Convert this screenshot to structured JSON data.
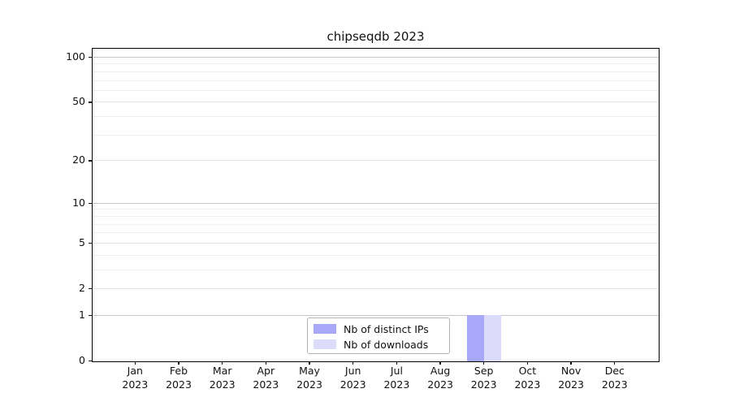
{
  "chart_data": {
    "type": "bar",
    "title": "chipseqdb 2023",
    "x_categories": [
      {
        "month": "Jan",
        "year": "2023"
      },
      {
        "month": "Feb",
        "year": "2023"
      },
      {
        "month": "Mar",
        "year": "2023"
      },
      {
        "month": "Apr",
        "year": "2023"
      },
      {
        "month": "May",
        "year": "2023"
      },
      {
        "month": "Jun",
        "year": "2023"
      },
      {
        "month": "Jul",
        "year": "2023"
      },
      {
        "month": "Aug",
        "year": "2023"
      },
      {
        "month": "Sep",
        "year": "2023"
      },
      {
        "month": "Oct",
        "year": "2023"
      },
      {
        "month": "Nov",
        "year": "2023"
      },
      {
        "month": "Dec",
        "year": "2023"
      }
    ],
    "series": [
      {
        "name": "Nb of distinct IPs",
        "color": "#a8a8f8",
        "values": [
          0,
          0,
          0,
          0,
          0,
          0,
          0,
          0,
          1,
          0,
          0,
          0
        ]
      },
      {
        "name": "Nb of downloads",
        "color": "#dcdcfa",
        "values": [
          0,
          0,
          0,
          0,
          0,
          0,
          0,
          0,
          1,
          0,
          0,
          0
        ]
      }
    ],
    "xlabel": "",
    "ylabel": "",
    "y_scale": "log1p",
    "y_major_ticks": [
      0,
      1,
      2,
      5,
      10,
      20,
      50,
      100
    ],
    "y_minor_gridlines": [
      3,
      4,
      6,
      7,
      8,
      9,
      30,
      40,
      60,
      70,
      80,
      90
    ],
    "ylim": [
      0,
      114
    ],
    "grid": "horizontal",
    "legend_position": "inside-bottom-center"
  },
  "colors": {
    "major_power_gridline": "#c6c6c6",
    "labeled_gridline": "#e4e4e4",
    "minor_gridline": "#eeeeee",
    "spine": "#000000",
    "text": "#111111",
    "legend_border": "#b3b3b3"
  }
}
